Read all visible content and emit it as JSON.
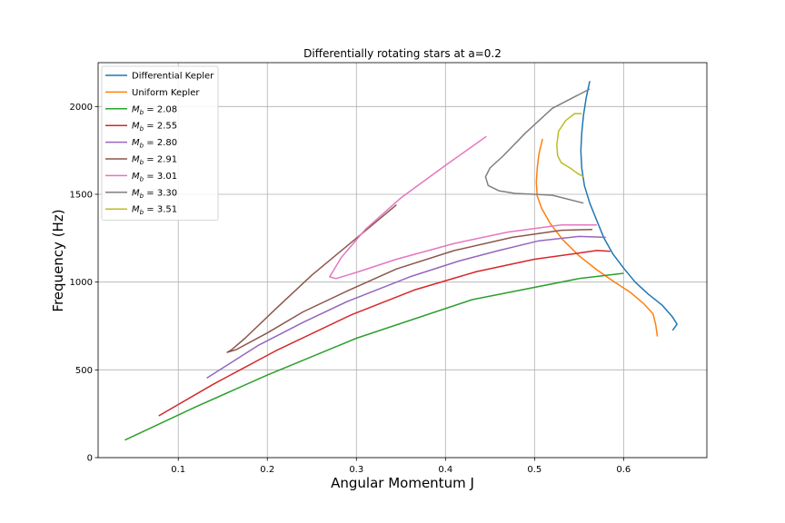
{
  "chart_data": {
    "type": "line",
    "title": "Differentially rotating stars at a=0.2",
    "xlabel": "Angular Momentum J",
    "ylabel": "Frequency (Hz)",
    "xlim": [
      0.01,
      0.6935
    ],
    "ylim": [
      0,
      2250
    ],
    "xticks": [
      0.1,
      0.2,
      0.3,
      0.4,
      0.5,
      0.6
    ],
    "xtick_labels": [
      "0.1",
      "0.2",
      "0.3",
      "0.4",
      "0.5",
      "0.6"
    ],
    "yticks": [
      0,
      500,
      1000,
      1500,
      2000
    ],
    "ytick_labels": [
      "0",
      "500",
      "1000",
      "1500",
      "2000"
    ],
    "grid": true,
    "legend_position": "top-left",
    "series": [
      {
        "name": "Differential Kepler",
        "legend_main": "Differential Kepler",
        "legend_sub": "",
        "color": "#1f77b4",
        "x": [
          0.562,
          0.558,
          0.555,
          0.553,
          0.552,
          0.553,
          0.556,
          0.562,
          0.57,
          0.578,
          0.588,
          0.6,
          0.613,
          0.628,
          0.643,
          0.655,
          0.66,
          0.655
        ],
        "y": [
          2145,
          2050,
          1950,
          1850,
          1750,
          1650,
          1550,
          1450,
          1350,
          1250,
          1160,
          1080,
          1000,
          930,
          870,
          800,
          760,
          725
        ]
      },
      {
        "name": "Uniform Kepler",
        "legend_main": "Uniform Kepler",
        "legend_sub": "",
        "color": "#ff7f0e",
        "x": [
          0.509,
          0.505,
          0.503,
          0.502,
          0.503,
          0.508,
          0.518,
          0.532,
          0.55,
          0.57,
          0.59,
          0.608,
          0.622,
          0.633,
          0.636,
          0.638
        ],
        "y": [
          1815,
          1730,
          1650,
          1570,
          1490,
          1420,
          1330,
          1240,
          1150,
          1070,
          1000,
          940,
          880,
          820,
          760,
          690
        ]
      },
      {
        "name": "M_b = 2.08",
        "legend_main": "M",
        "legend_sub": "b",
        "legend_rest": " = 2.08",
        "color": "#2ca02c",
        "x": [
          0.04,
          0.12,
          0.2,
          0.3,
          0.43,
          0.55,
          0.6
        ],
        "y": [
          100,
          290,
          470,
          680,
          900,
          1020,
          1050
        ]
      },
      {
        "name": "M_b = 2.55",
        "legend_main": "M",
        "legend_sub": "b",
        "legend_rest": " = 2.55",
        "color": "#d62728",
        "x": [
          0.078,
          0.14,
          0.21,
          0.295,
          0.365,
          0.435,
          0.5,
          0.57,
          0.585
        ],
        "y": [
          238,
          420,
          610,
          815,
          955,
          1060,
          1130,
          1180,
          1175
        ]
      },
      {
        "name": "M_b = 2.80",
        "legend_main": "M",
        "legend_sub": "b",
        "legend_rest": " = 2.80",
        "color": "#9467bd",
        "x": [
          0.132,
          0.19,
          0.24,
          0.29,
          0.36,
          0.415,
          0.46,
          0.505,
          0.55,
          0.58
        ],
        "y": [
          453,
          640,
          770,
          890,
          1030,
          1120,
          1180,
          1235,
          1260,
          1255
        ]
      },
      {
        "name": "M_b = 2.91",
        "legend_main": "M",
        "legend_sub": "b",
        "legend_rest": " = 2.91",
        "color": "#8c564b",
        "x": [
          0.345,
          0.3,
          0.25,
          0.21,
          0.175,
          0.16,
          0.155,
          0.165,
          0.2,
          0.24,
          0.29,
          0.345,
          0.41,
          0.475,
          0.53,
          0.565
        ],
        "y": [
          1440,
          1250,
          1040,
          850,
          680,
          615,
          600,
          615,
          710,
          830,
          950,
          1075,
          1180,
          1255,
          1295,
          1300
        ]
      },
      {
        "name": "M_b = 3.01",
        "legend_main": "M",
        "legend_sub": "b",
        "legend_rest": " = 3.01",
        "color": "#e377c2",
        "x": [
          0.446,
          0.4,
          0.35,
          0.31,
          0.283,
          0.27,
          0.277,
          0.3,
          0.345,
          0.41,
          0.47,
          0.53,
          0.57
        ],
        "y": [
          1830,
          1665,
          1480,
          1300,
          1140,
          1030,
          1020,
          1055,
          1130,
          1220,
          1285,
          1325,
          1325
        ]
      },
      {
        "name": "M_b = 3.30",
        "legend_main": "M",
        "legend_sub": "b",
        "legend_rest": " = 3.30",
        "color": "#7f7f7f",
        "x": [
          0.562,
          0.52,
          0.49,
          0.465,
          0.45,
          0.445,
          0.448,
          0.46,
          0.478,
          0.5,
          0.52,
          0.555
        ],
        "y": [
          2100,
          1990,
          1850,
          1720,
          1650,
          1600,
          1550,
          1520,
          1505,
          1500,
          1495,
          1450
        ]
      },
      {
        "name": "M_b = 3.51",
        "legend_main": "M",
        "legend_sub": "b",
        "legend_rest": " = 3.51",
        "color": "#bcbd22",
        "x": [
          0.553,
          0.545,
          0.535,
          0.527,
          0.525,
          0.526,
          0.53,
          0.54,
          0.548,
          0.555
        ],
        "y": [
          1960,
          1960,
          1920,
          1860,
          1780,
          1720,
          1680,
          1650,
          1620,
          1600
        ]
      }
    ]
  }
}
